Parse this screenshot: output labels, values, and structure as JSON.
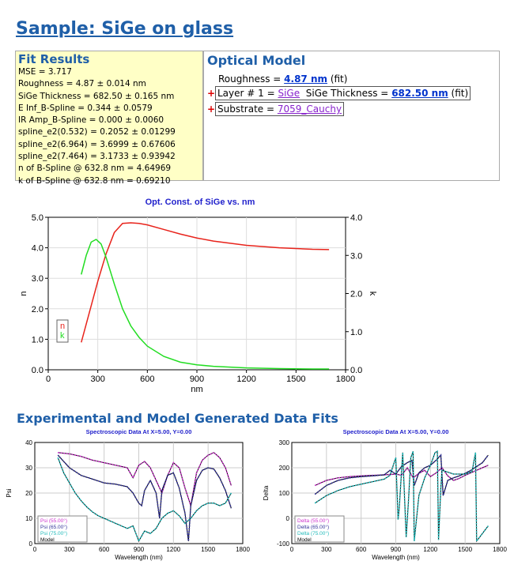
{
  "header": {
    "title": "Sample: SiGe on glass"
  },
  "fit_results": {
    "title": "Fit Results",
    "lines": [
      "MSE = 3.717",
      "Roughness = 4.87 ± 0.014 nm",
      "SiGe Thickness = 682.50 ± 0.165 nm",
      "E Inf_B-Spline = 0.344 ± 0.0579",
      "IR Amp_B-Spline = 0.000 ± 0.0060",
      "spline_e2(0.532) = 0.2052 ± 0.01299",
      "spline_e2(6.964) = 3.6999 ± 0.67606",
      "spline_e2(7.464) = 3.1733 ± 0.93942",
      "n of B-Spline @ 632.8 nm = 4.64969",
      "k of B-Spline @ 632.8 nm = 0.69210"
    ]
  },
  "optical_model": {
    "title": "Optical Model",
    "roughness_label": "Roughness = ",
    "roughness_value": "4.87 nm",
    "roughness_suffix": " (fit)",
    "layer_prefix": "Layer # 1 = ",
    "layer_material": "SiGe",
    "layer_thickness_label": "  SiGe Thickness = ",
    "layer_thickness_value": "682.50 nm",
    "layer_suffix": " (fit)",
    "substrate_prefix": "Substrate = ",
    "substrate_material": "7059_Cauchy"
  },
  "section2": {
    "title": "Experimental and Model Generated Data Fits"
  },
  "colors": {
    "n": "#e8231b",
    "k": "#22dd22",
    "c55": "#cc33cc",
    "c65": "#333399",
    "c75": "#22bbbb",
    "model": "#000000"
  },
  "chart_data": [
    {
      "type": "line",
      "title": "Opt. Const. of SiGe vs. nm",
      "xlabel": "nm",
      "ylabel": "n",
      "y2label": "k",
      "xlim": [
        0,
        1800
      ],
      "ylim": [
        0,
        5
      ],
      "y2lim": [
        0,
        4
      ],
      "xticks": [
        "0",
        "300",
        "600",
        "900",
        "1200",
        "1500",
        "1800"
      ],
      "yticks": [
        "0.0",
        "1.0",
        "2.0",
        "3.0",
        "4.0",
        "5.0"
      ],
      "y2ticks": [
        "0.0",
        "1.0",
        "2.0",
        "3.0",
        "4.0"
      ],
      "legend": [
        "n",
        "k"
      ],
      "series": [
        {
          "name": "n",
          "axis": "left",
          "x": [
            200,
            250,
            300,
            350,
            400,
            450,
            500,
            550,
            600,
            700,
            800,
            900,
            1000,
            1200,
            1400,
            1600,
            1700
          ],
          "y": [
            0.9,
            1.9,
            2.9,
            3.8,
            4.5,
            4.8,
            4.82,
            4.8,
            4.75,
            4.6,
            4.45,
            4.32,
            4.22,
            4.08,
            4.0,
            3.95,
            3.94
          ]
        },
        {
          "name": "k",
          "axis": "right",
          "x": [
            200,
            230,
            260,
            290,
            320,
            350,
            400,
            450,
            500,
            550,
            600,
            700,
            800,
            900,
            1000,
            1200,
            1400,
            1600,
            1700
          ],
          "y": [
            2.5,
            3.0,
            3.35,
            3.42,
            3.3,
            2.95,
            2.25,
            1.6,
            1.15,
            0.85,
            0.62,
            0.35,
            0.2,
            0.13,
            0.09,
            0.05,
            0.03,
            0.02,
            0.02
          ]
        }
      ]
    },
    {
      "type": "line",
      "title": "Spectroscopic Data At X=5.00, Y=0.00",
      "xlabel": "Wavelength (nm)",
      "ylabel": "Psi",
      "xlim": [
        0,
        1800
      ],
      "ylim": [
        0,
        40
      ],
      "xticks": [
        "0",
        "300",
        "600",
        "900",
        "1200",
        "1500",
        "1800"
      ],
      "yticks": [
        "0",
        "10",
        "20",
        "30",
        "40"
      ],
      "legend": [
        "Psi (55.00°)",
        "Psi (65.00°)",
        "Psi (75.00°)",
        "Model"
      ],
      "series": [
        {
          "name": "Psi (55.00°)",
          "x": [
            200,
            300,
            400,
            500,
            600,
            700,
            800,
            850,
            900,
            950,
            1000,
            1050,
            1100,
            1150,
            1200,
            1250,
            1300,
            1350,
            1400,
            1450,
            1500,
            1550,
            1600,
            1650,
            1700
          ],
          "y": [
            36,
            35.5,
            34.5,
            33,
            32,
            31,
            30,
            26,
            31,
            32.5,
            30,
            25,
            20,
            27,
            32,
            30,
            22,
            15,
            28,
            33,
            35,
            36,
            34,
            30,
            23
          ]
        },
        {
          "name": "Psi (65.00°)",
          "x": [
            200,
            300,
            400,
            500,
            600,
            700,
            800,
            850,
            900,
            925,
            950,
            1000,
            1050,
            1080,
            1100,
            1150,
            1200,
            1250,
            1300,
            1330,
            1350,
            1400,
            1450,
            1500,
            1550,
            1600,
            1650,
            1700
          ],
          "y": [
            35,
            30,
            27,
            25.5,
            24,
            23.5,
            22.5,
            20,
            16,
            15,
            21,
            25,
            20,
            10,
            21,
            27,
            28,
            22,
            12,
            1,
            15,
            25,
            29,
            30,
            29.5,
            26,
            21,
            14
          ]
        },
        {
          "name": "Psi (75.00°)",
          "x": [
            200,
            250,
            300,
            350,
            400,
            450,
            500,
            550,
            600,
            650,
            700,
            750,
            800,
            850,
            900,
            950,
            1000,
            1050,
            1100,
            1150,
            1200,
            1250,
            1300,
            1350,
            1400,
            1450,
            1500,
            1550,
            1600,
            1650,
            1700
          ],
          "y": [
            34,
            28,
            24,
            20,
            17,
            14.5,
            12.5,
            11,
            10,
            9,
            8,
            7,
            6,
            7,
            1,
            5,
            4,
            6,
            10,
            12,
            13,
            11,
            8,
            10,
            13,
            15,
            16,
            16,
            15,
            16,
            20
          ]
        }
      ]
    },
    {
      "type": "line",
      "title": "Spectroscopic Data At X=5.00, Y=0.00",
      "xlabel": "Wavelength (nm)",
      "ylabel": "Delta",
      "xlim": [
        0,
        1800
      ],
      "ylim": [
        -100,
        300
      ],
      "xticks": [
        "0",
        "300",
        "600",
        "900",
        "1200",
        "1500",
        "1800"
      ],
      "yticks": [
        "-100",
        "0",
        "100",
        "200",
        "300"
      ],
      "legend": [
        "Delta (55.00°)",
        "Delta (65.00°)",
        "Delta (75.00°)",
        "Model"
      ],
      "series": [
        {
          "name": "Delta (55.00°)",
          "x": [
            200,
            300,
            400,
            500,
            600,
            700,
            800,
            900,
            950,
            1000,
            1050,
            1100,
            1150,
            1200,
            1250,
            1300,
            1350,
            1400,
            1450,
            1500,
            1550,
            1600,
            1650,
            1700
          ],
          "y": [
            130,
            150,
            160,
            165,
            168,
            170,
            172,
            175,
            170,
            200,
            160,
            178,
            190,
            165,
            180,
            200,
            168,
            150,
            158,
            170,
            180,
            190,
            200,
            210
          ]
        },
        {
          "name": "Delta (65.00°)",
          "x": [
            200,
            300,
            400,
            500,
            600,
            700,
            800,
            850,
            900,
            950,
            1000,
            1040,
            1060,
            1100,
            1150,
            1200,
            1250,
            1290,
            1310,
            1350,
            1400,
            1450,
            1500,
            1550,
            1600,
            1650,
            1700
          ],
          "y": [
            95,
            130,
            150,
            160,
            165,
            168,
            172,
            190,
            175,
            205,
            220,
            230,
            130,
            180,
            200,
            210,
            230,
            250,
            90,
            150,
            160,
            168,
            178,
            190,
            205,
            220,
            250
          ]
        },
        {
          "name": "Delta (75.00°)",
          "x": [
            200,
            300,
            400,
            500,
            600,
            700,
            800,
            850,
            900,
            920,
            930,
            960,
            990,
            1010,
            1030,
            1050,
            1060,
            1100,
            1150,
            1200,
            1240,
            1260,
            1270,
            1290,
            1300,
            1400,
            1500,
            1560,
            1590,
            1600,
            1650,
            1700
          ],
          "y": [
            60,
            90,
            110,
            125,
            135,
            145,
            155,
            170,
            240,
            -5,
            40,
            260,
            -75,
            70,
            240,
            265,
            -90,
            90,
            160,
            210,
            260,
            265,
            -85,
            120,
            190,
            175,
            175,
            185,
            260,
            -90,
            -60,
            -30
          ]
        }
      ]
    }
  ]
}
